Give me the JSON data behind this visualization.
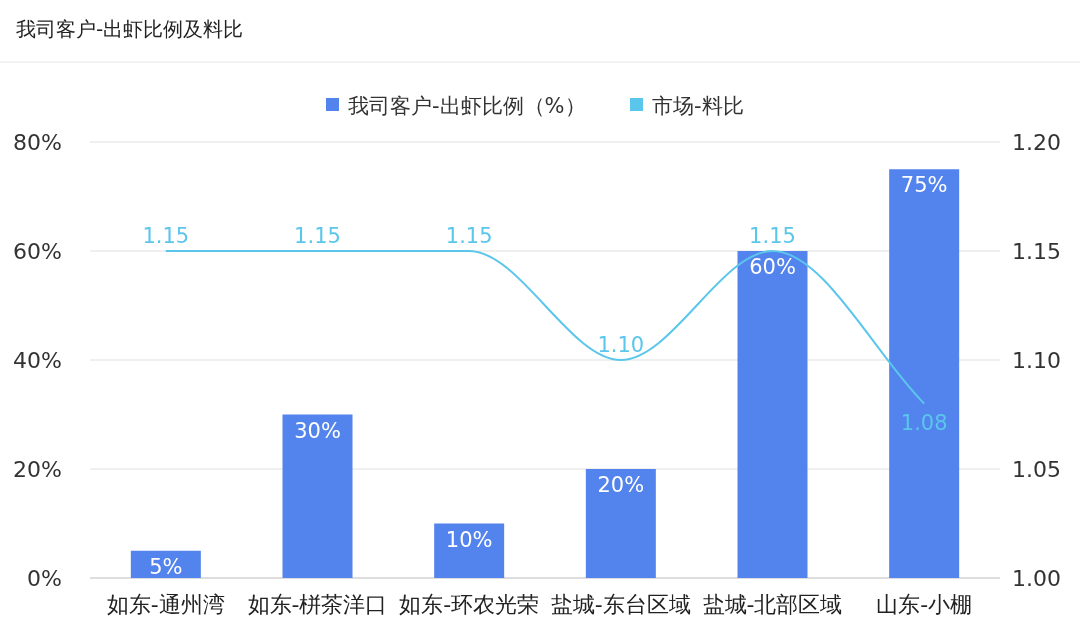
{
  "chart_data": {
    "type": "bar",
    "title": "我司客户-出虾比例及料比",
    "categories": [
      "如东-通州湾",
      "如东-栟茶洋口",
      "如东-环农光荣",
      "盐城-东台区域",
      "盐城-北部区域",
      "山东-小棚"
    ],
    "series": [
      {
        "name": "我司客户-出虾比例（%）",
        "color": "#5383ec",
        "values": [
          5,
          30,
          10,
          20,
          60,
          75
        ],
        "value_labels": [
          "5%",
          "30%",
          "10%",
          "20%",
          "60%",
          "75%"
        ]
      },
      {
        "name": "市场-料比",
        "type": "line",
        "axis": "y2",
        "color": "#5bc6ec",
        "values": [
          1.15,
          1.15,
          1.15,
          1.1,
          1.15,
          1.08
        ],
        "value_labels": [
          "1.15",
          "1.15",
          "1.15",
          "1.10",
          "1.15",
          "1.08"
        ]
      }
    ],
    "ylim": [
      0,
      80
    ],
    "yticks": [
      {
        "value": 0,
        "label": "0%"
      },
      {
        "value": 20,
        "label": "20%"
      },
      {
        "value": 40,
        "label": "40%"
      },
      {
        "value": 60,
        "label": "60%"
      },
      {
        "value": 80,
        "label": "80%"
      }
    ],
    "y2lim": [
      1.0,
      1.2
    ],
    "y2ticks": [
      {
        "value": 1.0,
        "label": "1.00"
      },
      {
        "value": 1.05,
        "label": "1.05"
      },
      {
        "value": 1.1,
        "label": "1.10"
      },
      {
        "value": 1.15,
        "label": "1.15"
      },
      {
        "value": 1.2,
        "label": "1.20"
      }
    ],
    "grid": "y",
    "legend": "top"
  }
}
